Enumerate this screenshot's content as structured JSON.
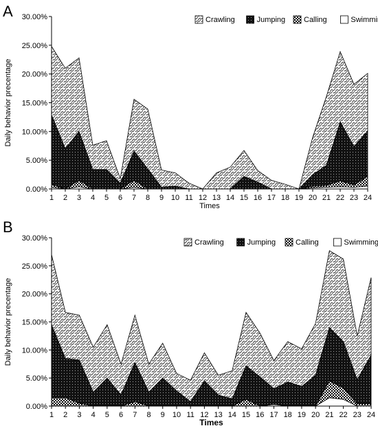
{
  "chart_data": [
    {
      "panel_label": "A",
      "type": "area",
      "stacked": true,
      "xlabel": "Times",
      "ylabel": "Daily behavior precentage",
      "ylim": [
        0,
        30
      ],
      "yticks": [
        "0.00%",
        "5.00%",
        "10.00%",
        "15.00%",
        "20.00%",
        "25.00%",
        "30.00%"
      ],
      "x": [
        1,
        2,
        3,
        4,
        5,
        6,
        7,
        8,
        9,
        10,
        11,
        12,
        13,
        14,
        15,
        16,
        17,
        18,
        19,
        20,
        21,
        22,
        23,
        24
      ],
      "legend_position": "top-right",
      "series": [
        {
          "name": "Swimming",
          "values": [
            0.3,
            0,
            0.4,
            0,
            0,
            0,
            0.3,
            0,
            0,
            0,
            0,
            0,
            0,
            0,
            0,
            0,
            0,
            0,
            0,
            0.2,
            0.3,
            0.4,
            0.3,
            0.5
          ]
        },
        {
          "name": "Calling",
          "values": [
            0.5,
            0,
            1.1,
            0,
            0,
            0,
            1.2,
            0,
            0,
            0,
            0,
            0,
            0,
            0,
            0,
            0,
            0,
            0,
            0,
            0.3,
            0.3,
            1.0,
            0.4,
            1.7
          ]
        },
        {
          "name": "Jumping",
          "values": [
            12.1,
            7.0,
            8.5,
            3.4,
            3.4,
            1.0,
            5.1,
            3.5,
            0.3,
            0.5,
            0,
            0,
            0,
            0,
            2.2,
            1.2,
            0,
            0,
            0,
            2.0,
            3.5,
            10.3,
            6.7,
            7.9
          ]
        },
        {
          "name": "Crawling",
          "values": [
            11.9,
            14.0,
            12.8,
            4.2,
            5.0,
            0.8,
            9.0,
            10.4,
            3.0,
            2.3,
            1.0,
            0,
            2.8,
            3.8,
            4.5,
            2.0,
            1.5,
            0.8,
            0,
            6.5,
            12.0,
            12.2,
            10.8,
            10.0
          ]
        }
      ]
    },
    {
      "panel_label": "B",
      "type": "area",
      "stacked": true,
      "xlabel": "Times",
      "ylabel": "Daily behavior precentage",
      "ylim": [
        0,
        30
      ],
      "yticks": [
        "0.00%",
        "5.00%",
        "10.00%",
        "15.00%",
        "20.00%",
        "25.00%",
        "30.00%"
      ],
      "x": [
        1,
        2,
        3,
        4,
        5,
        6,
        7,
        8,
        9,
        10,
        11,
        12,
        13,
        14,
        15,
        16,
        17,
        18,
        19,
        20,
        21,
        22,
        23,
        24
      ],
      "legend_position": "top-right",
      "series": [
        {
          "name": "Swimming",
          "values": [
            0,
            0,
            0,
            0,
            0,
            0,
            0,
            0,
            0,
            0,
            0,
            0,
            0,
            0,
            0,
            0,
            0.3,
            0,
            0,
            0,
            1.5,
            1.2,
            0,
            0
          ]
        },
        {
          "name": "Calling",
          "values": [
            1.5,
            1.5,
            0.5,
            0,
            0,
            0,
            0.8,
            0,
            0,
            0,
            0,
            0,
            0,
            0,
            1.2,
            0,
            0,
            0,
            0,
            0,
            3.0,
            2.0,
            0.4,
            0.4
          ]
        },
        {
          "name": "Jumping",
          "values": [
            13.0,
            7.0,
            7.7,
            2.5,
            5.0,
            2.0,
            7.0,
            2.5,
            5.0,
            2.7,
            0.8,
            4.5,
            2.0,
            1.3,
            6.0,
            5.2,
            2.8,
            4.3,
            3.5,
            5.5,
            9.5,
            8.3,
            4.3,
            8.7
          ]
        },
        {
          "name": "Crawling",
          "values": [
            12.5,
            8.2,
            8.0,
            8.0,
            9.5,
            5.5,
            8.4,
            5.0,
            6.2,
            3.1,
            3.8,
            5.0,
            3.5,
            5.0,
            9.5,
            7.8,
            5.0,
            7.2,
            6.7,
            9.2,
            13.7,
            14.7,
            7.8,
            13.8
          ]
        }
      ]
    }
  ]
}
